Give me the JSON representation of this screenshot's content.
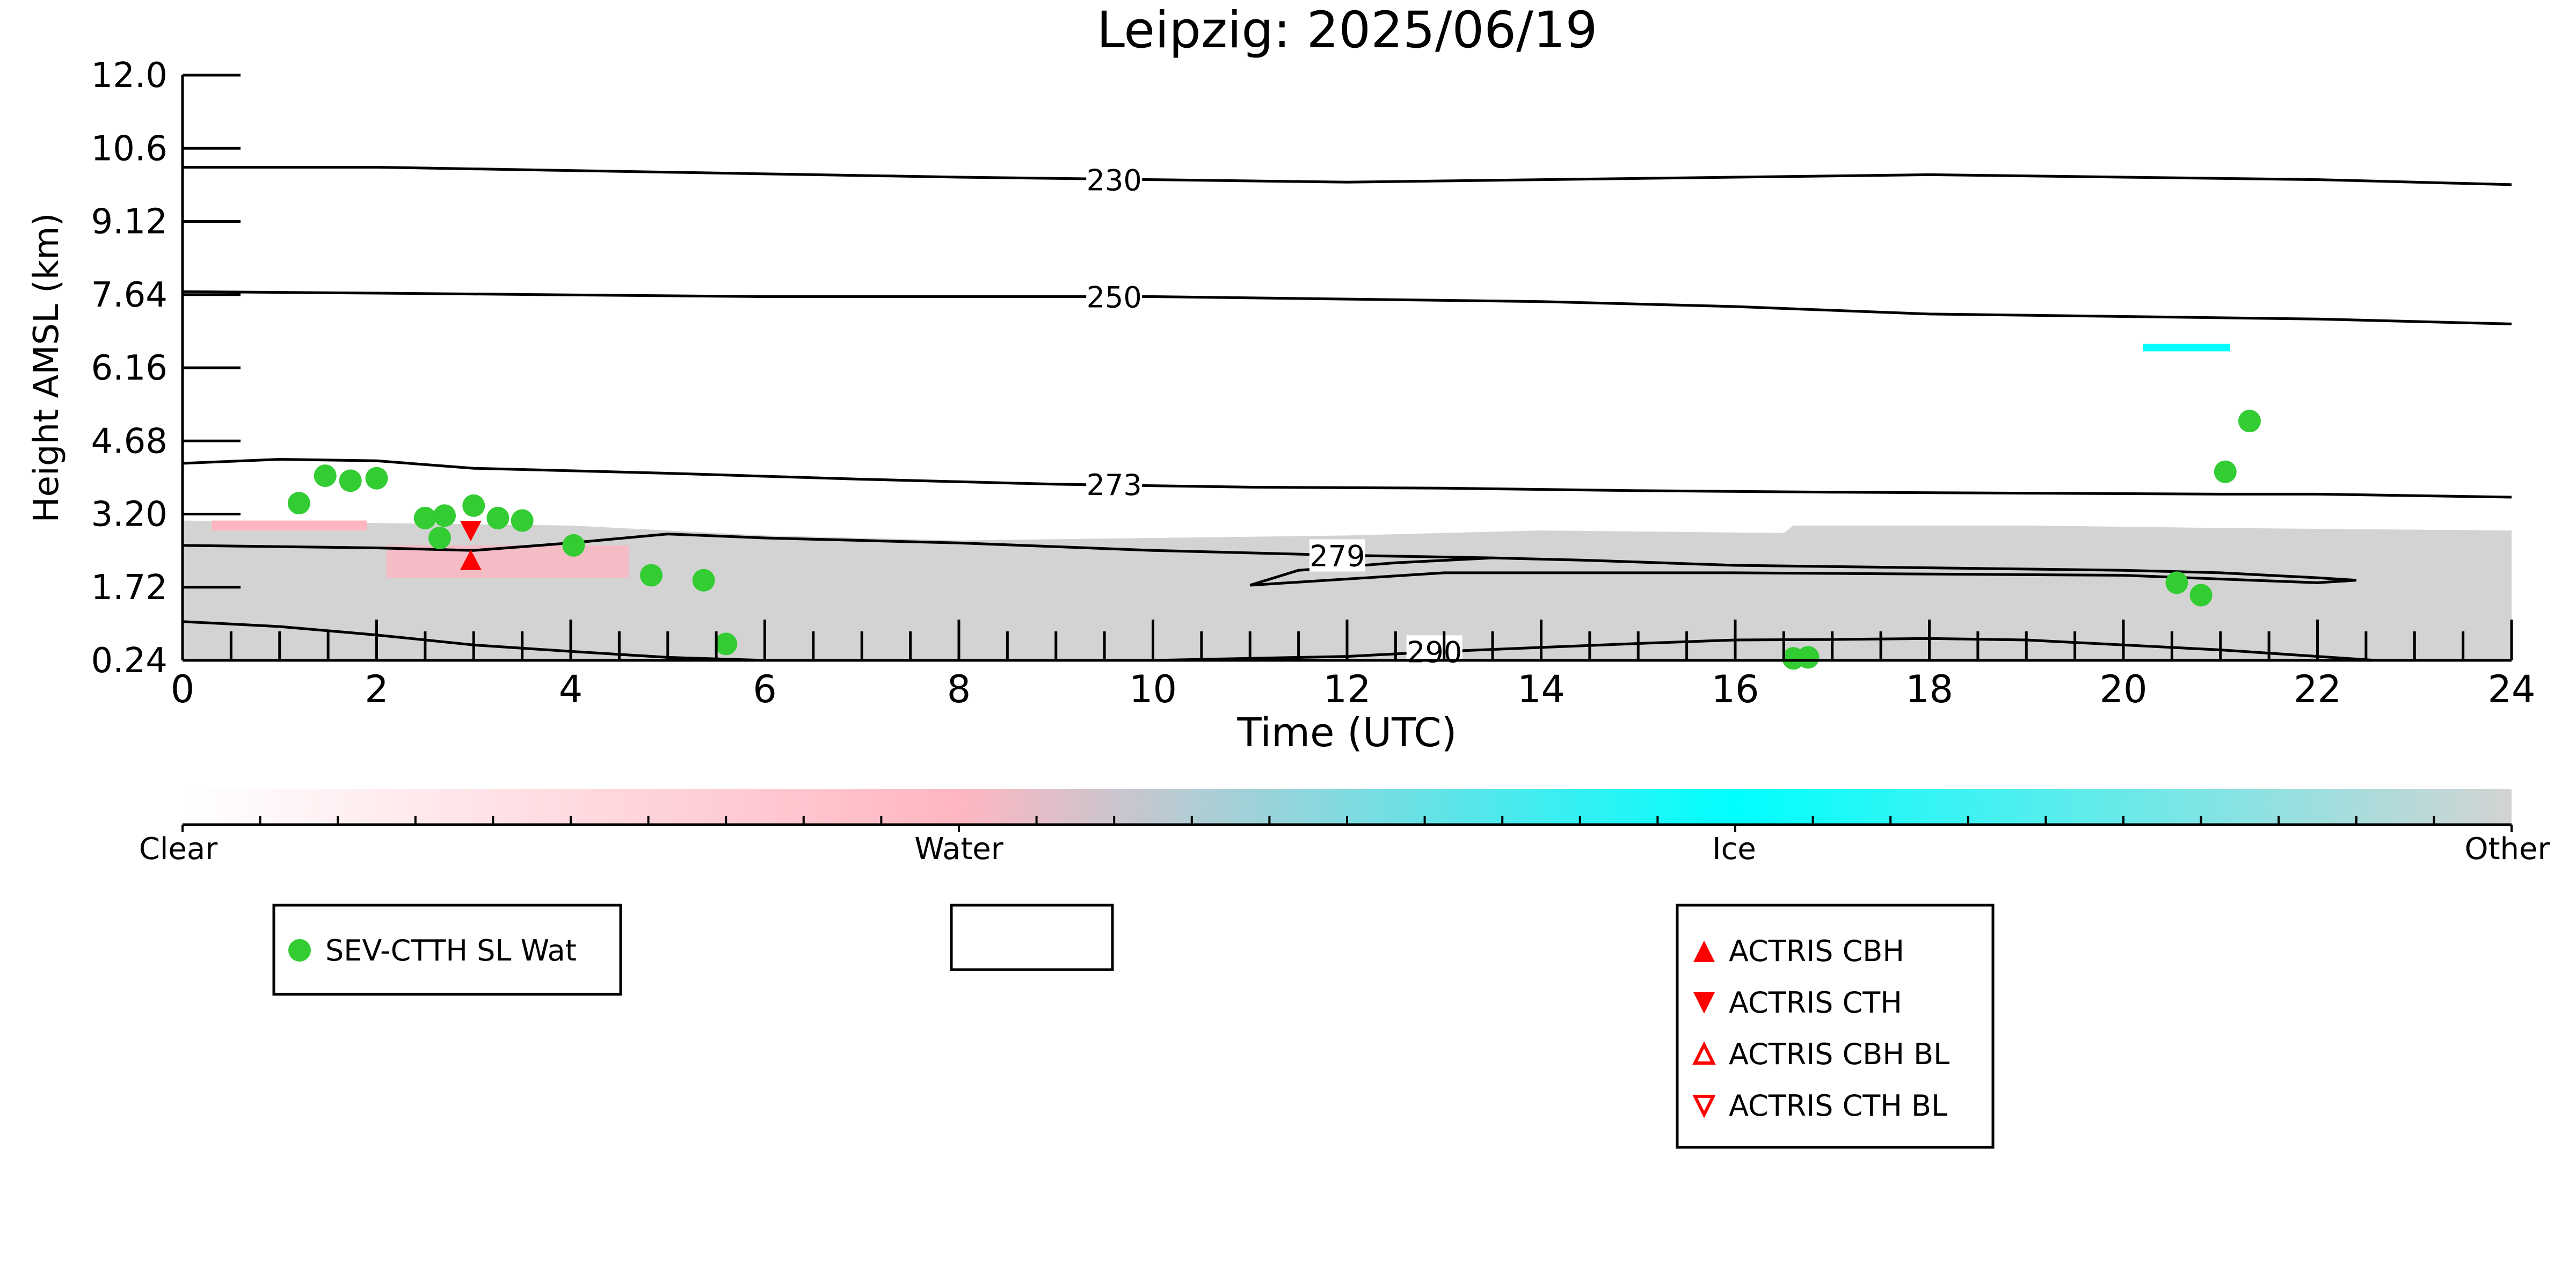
{
  "chart_data": {
    "type": "scatter",
    "title": "Leipzig: 2025/06/19",
    "xlabel": "Time (UTC)",
    "ylabel": "Height AMSL (km)",
    "xlim": [
      0,
      24
    ],
    "ylim": [
      0.24,
      12.0
    ],
    "x_ticks": [
      0,
      2,
      4,
      6,
      8,
      10,
      12,
      14,
      16,
      18,
      20,
      22,
      24
    ],
    "y_tick_labels": [
      "0.24",
      "1.72",
      "3.20",
      "4.68",
      "6.16",
      "7.64",
      "9.12",
      "10.6",
      "12.0"
    ],
    "colorbar": {
      "labels": [
        "Clear",
        "Water",
        "Ice",
        "Other"
      ],
      "colors": [
        "#ffffff",
        "#ffb6c1",
        "#00ffff",
        "#d3d3d3"
      ]
    },
    "contours": [
      {
        "label": "230",
        "label_x": 9.6,
        "points": [
          [
            0,
            10.15
          ],
          [
            2,
            10.15
          ],
          [
            5,
            10.05
          ],
          [
            8,
            9.95
          ],
          [
            10,
            9.9
          ],
          [
            12,
            9.85
          ],
          [
            14,
            9.9
          ],
          [
            16,
            9.95
          ],
          [
            18,
            10.0
          ],
          [
            20,
            9.95
          ],
          [
            22,
            9.9
          ],
          [
            24,
            9.8
          ]
        ]
      },
      {
        "label": "250",
        "label_x": 9.6,
        "points": [
          [
            0,
            7.65
          ],
          [
            2,
            7.62
          ],
          [
            6,
            7.55
          ],
          [
            10,
            7.55
          ],
          [
            12,
            7.5
          ],
          [
            14,
            7.45
          ],
          [
            16,
            7.35
          ],
          [
            18,
            7.2
          ],
          [
            20,
            7.15
          ],
          [
            22,
            7.1
          ],
          [
            24,
            7.0
          ]
        ]
      },
      {
        "label": "273",
        "label_x": 9.6,
        "points": [
          [
            0,
            4.2
          ],
          [
            1,
            4.28
          ],
          [
            2,
            4.25
          ],
          [
            3,
            4.1
          ],
          [
            5,
            4.0
          ],
          [
            7,
            3.88
          ],
          [
            9,
            3.78
          ],
          [
            11,
            3.72
          ],
          [
            13,
            3.7
          ],
          [
            15,
            3.65
          ],
          [
            17,
            3.62
          ],
          [
            19,
            3.6
          ],
          [
            21,
            3.58
          ],
          [
            22,
            3.58
          ],
          [
            24,
            3.52
          ]
        ]
      },
      {
        "label": "279",
        "label_x": 11.9,
        "points": [
          [
            0,
            2.55
          ],
          [
            2,
            2.5
          ],
          [
            3,
            2.45
          ],
          [
            4,
            2.6
          ],
          [
            5,
            2.78
          ],
          [
            6,
            2.7
          ],
          [
            8,
            2.6
          ],
          [
            10,
            2.45
          ],
          [
            12,
            2.35
          ],
          [
            13.5,
            2.3
          ],
          [
            14.5,
            2.25
          ],
          [
            16,
            2.15
          ],
          [
            18,
            2.1
          ],
          [
            20,
            2.05
          ],
          [
            21,
            2.0
          ],
          [
            22,
            1.9
          ],
          [
            22.4,
            1.85
          ],
          [
            22,
            1.8
          ],
          [
            20,
            1.95
          ],
          [
            16,
            2.0
          ],
          [
            13,
            2.0
          ],
          [
            11,
            1.75
          ],
          [
            11.5,
            2.05
          ],
          [
            12.5,
            2.2
          ],
          [
            13.5,
            2.3
          ]
        ]
      },
      {
        "label": "290",
        "label_x": 12.9,
        "points": [
          [
            0,
            1.02
          ],
          [
            1,
            0.92
          ],
          [
            2,
            0.75
          ],
          [
            3,
            0.55
          ],
          [
            4,
            0.42
          ],
          [
            5,
            0.3
          ],
          [
            6,
            0.24
          ],
          [
            8,
            0.24
          ],
          [
            10,
            0.24
          ],
          [
            12,
            0.32
          ],
          [
            13,
            0.42
          ],
          [
            14,
            0.5
          ],
          [
            15,
            0.58
          ],
          [
            16,
            0.65
          ],
          [
            17,
            0.66
          ],
          [
            18,
            0.68
          ],
          [
            19,
            0.65
          ],
          [
            20,
            0.55
          ],
          [
            21,
            0.45
          ],
          [
            22,
            0.32
          ],
          [
            22.6,
            0.24
          ]
        ]
      }
    ],
    "series": [
      {
        "name": "SEV-CTTH SL Wat",
        "color": "#33cc33",
        "marker": "circle",
        "points": [
          [
            1.2,
            3.4
          ],
          [
            1.47,
            3.95
          ],
          [
            1.73,
            3.85
          ],
          [
            2.0,
            3.9
          ],
          [
            2.5,
            3.1
          ],
          [
            2.7,
            3.15
          ],
          [
            2.65,
            2.7
          ],
          [
            3.0,
            3.35
          ],
          [
            3.25,
            3.1
          ],
          [
            3.5,
            3.05
          ],
          [
            4.03,
            2.55
          ],
          [
            4.83,
            1.95
          ],
          [
            5.37,
            1.85
          ],
          [
            5.6,
            0.57
          ],
          [
            16.6,
            0.28
          ],
          [
            16.75,
            0.3
          ],
          [
            20.55,
            1.8
          ],
          [
            20.8,
            1.55
          ],
          [
            21.05,
            4.03
          ],
          [
            21.3,
            5.05
          ]
        ]
      },
      {
        "name": "ACTRIS CBH",
        "color": "#ff0000",
        "marker": "triangle-up",
        "points": [
          [
            2.97,
            2.25
          ]
        ]
      },
      {
        "name": "ACTRIS CTH",
        "color": "#ff0000",
        "marker": "triangle-down",
        "points": [
          [
            2.97,
            2.85
          ]
        ]
      },
      {
        "name": "ACTRIS CBH BL",
        "color": "#ff0000",
        "marker": "triangle-up-open",
        "points": []
      },
      {
        "name": "ACTRIS CTH BL",
        "color": "#ff0000",
        "marker": "triangle-down-open",
        "points": []
      }
    ]
  }
}
